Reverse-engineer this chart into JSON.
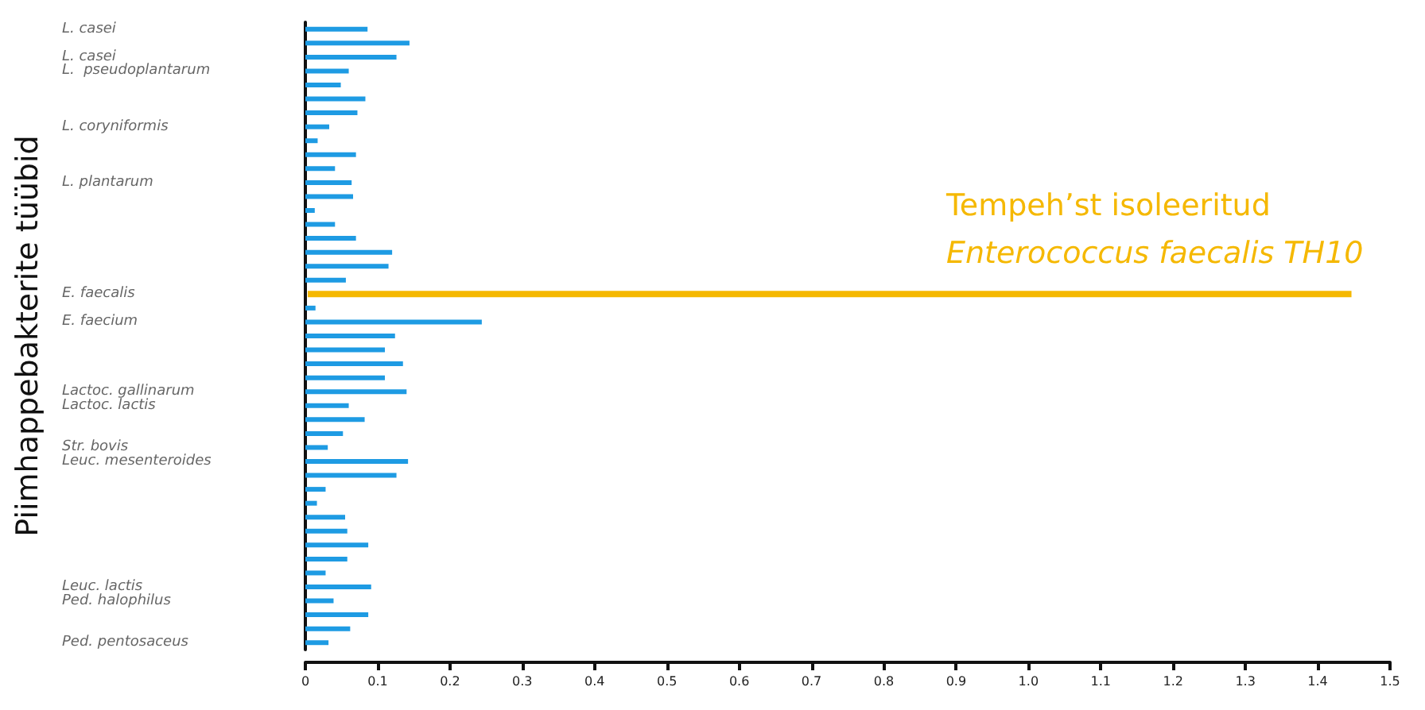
{
  "chart_data": {
    "type": "bar",
    "orientation": "horizontal",
    "ylabel": "Piimhappebakterite tüübid",
    "categories": [
      "L. casei",
      null,
      "L. casei",
      "L.  pseudoplantarum",
      null,
      null,
      null,
      "L. coryniformis",
      null,
      null,
      null,
      "L. plantarum",
      null,
      null,
      null,
      null,
      null,
      null,
      null,
      "E. faecalis",
      null,
      "E. faecium",
      null,
      null,
      null,
      null,
      "Lactoc. gallinarum",
      "Lactoc. lactis",
      null,
      null,
      "Str. bovis",
      "Leuc. mesenteroides",
      null,
      null,
      null,
      null,
      null,
      null,
      null,
      null,
      "Leuc. lactis",
      "Ped. halophilus",
      null,
      null,
      "Ped. pentosaceus"
    ],
    "values": [
      0.086,
      0.144,
      0.126,
      0.06,
      0.049,
      0.083,
      0.072,
      0.033,
      0.017,
      0.07,
      0.041,
      0.064,
      0.066,
      0.013,
      0.041,
      0.07,
      0.12,
      0.115,
      0.056,
      1.45,
      0.014,
      0.244,
      0.124,
      0.11,
      0.135,
      0.11,
      0.14,
      0.06,
      0.082,
      0.052,
      0.031,
      0.142,
      0.126,
      0.028,
      0.016,
      0.055,
      0.058,
      0.087,
      0.058,
      0.028,
      0.091,
      0.039,
      0.087,
      0.062,
      0.032
    ],
    "colors": [
      "#1e9be3",
      "#1e9be3",
      "#1e9be3",
      "#1e9be3",
      "#1e9be3",
      "#1e9be3",
      "#1e9be3",
      "#1e9be3",
      "#1e9be3",
      "#1e9be3",
      "#1e9be3",
      "#1e9be3",
      "#1e9be3",
      "#1e9be3",
      "#1e9be3",
      "#1e9be3",
      "#1e9be3",
      "#1e9be3",
      "#1e9be3",
      "#f5b800",
      "#1e9be3",
      "#1e9be3",
      "#1e9be3",
      "#1e9be3",
      "#1e9be3",
      "#1e9be3",
      "#1e9be3",
      "#1e9be3",
      "#1e9be3",
      "#1e9be3",
      "#1e9be3",
      "#1e9be3",
      "#1e9be3",
      "#1e9be3",
      "#1e9be3",
      "#1e9be3",
      "#1e9be3",
      "#1e9be3",
      "#1e9be3",
      "#1e9be3",
      "#1e9be3",
      "#1e9be3",
      "#1e9be3",
      "#1e9be3",
      "#1e9be3"
    ],
    "xlim": [
      0,
      1.5
    ],
    "xticks": [
      0,
      0.1,
      0.2,
      0.3,
      0.4,
      0.5,
      0.6,
      0.7,
      0.8,
      0.9,
      {
        "value": 1,
        "label": "1.0"
      },
      1.1,
      1.2,
      1.3,
      1.4,
      1.5
    ],
    "annotations": [
      "Tempeh’st isoleeritud",
      "Enterococcus faecalis TH10"
    ],
    "grid": false
  }
}
